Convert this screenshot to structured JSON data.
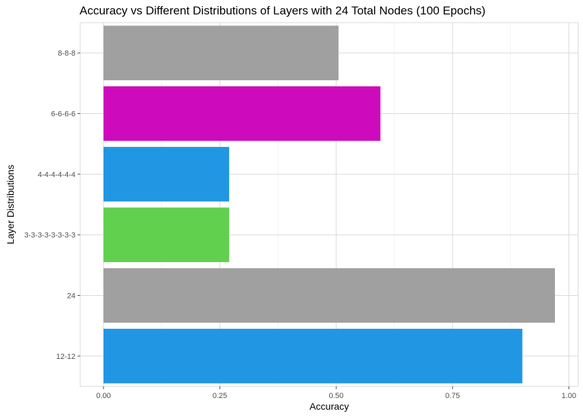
{
  "chart_data": {
    "type": "bar",
    "orientation": "horizontal",
    "title": "Accuracy vs Different Distributions of Layers with 24 Total Nodes (100 Epochs)",
    "xlabel": "Accuracy",
    "ylabel": "Layer Distributions",
    "categories": [
      "12-12",
      "24",
      "3-3-3-3-3-3-3-3",
      "4-4-4-4-4-4",
      "6-6-6-6",
      "8-8-8"
    ],
    "values": [
      0.9,
      0.97,
      0.27,
      0.27,
      0.595,
      0.505
    ],
    "colors": [
      "#2196e3",
      "#a0a0a0",
      "#61d04f",
      "#2196e3",
      "#cd0bbc",
      "#a0a0a0"
    ],
    "xlim": [
      -0.05,
      1.02
    ],
    "xticks": [
      0.0,
      0.25,
      0.5,
      0.75,
      1.0
    ],
    "xtick_labels": [
      "0.00",
      "0.25",
      "0.50",
      "0.75",
      "1.00"
    ],
    "grid": true,
    "theme": "light"
  }
}
